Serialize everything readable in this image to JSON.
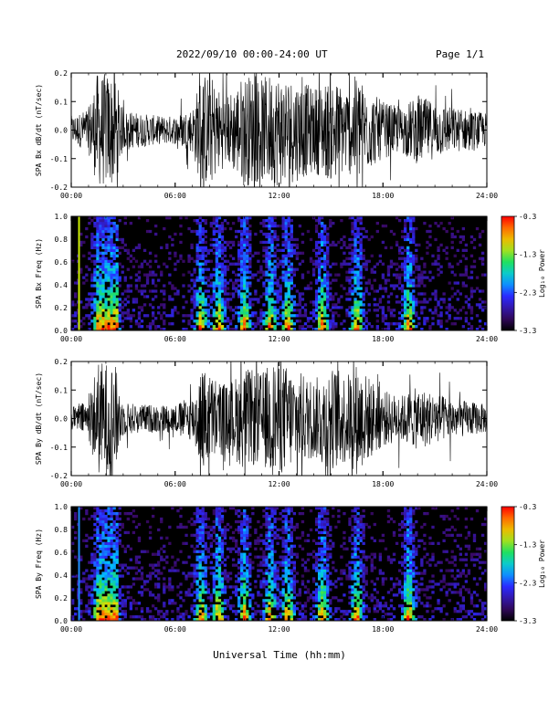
{
  "header": {
    "title": "2022/09/10  00:00-24:00 UT",
    "page": "Page 1/1"
  },
  "x_axis_title": "Universal Time (hh:mm)",
  "chart_data": [
    {
      "type": "line",
      "ylabel": "SPA Bx dB/dt (nT/sec)",
      "x_range_hours": [
        0,
        24
      ],
      "x_ticks": [
        "00:00",
        "06:00",
        "12:00",
        "18:00",
        "24:00"
      ],
      "ylim": [
        -0.2,
        0.2
      ],
      "y_ticks": [
        "-0.2",
        "-0.1",
        "0.0",
        "0.1",
        "0.2"
      ],
      "envelope": {
        "x_hours": [
          0,
          0.5,
          1.0,
          1.5,
          2.0,
          2.5,
          3.0,
          4.0,
          5.0,
          6.0,
          7.0,
          7.5,
          8.0,
          8.5,
          9.0,
          10.0,
          11.0,
          11.5,
          12.0,
          13.0,
          14.0,
          15.0,
          16.0,
          16.5,
          17.0,
          18.0,
          19.0,
          20.0,
          21.0,
          22.0,
          23.0,
          24.0
        ],
        "amplitude": [
          0.05,
          0.06,
          0.08,
          0.2,
          0.2,
          0.2,
          0.07,
          0.06,
          0.05,
          0.05,
          0.08,
          0.2,
          0.2,
          0.15,
          0.12,
          0.2,
          0.18,
          0.2,
          0.2,
          0.18,
          0.15,
          0.18,
          0.15,
          0.2,
          0.15,
          0.1,
          0.08,
          0.12,
          0.1,
          0.08,
          0.07,
          0.06
        ]
      }
    },
    {
      "type": "heatmap",
      "ylabel": "SPA Bx Freq (Hz)",
      "x_range_hours": [
        0,
        24
      ],
      "x_ticks": [
        "00:00",
        "06:00",
        "12:00",
        "18:00",
        "24:00"
      ],
      "ylim": [
        0,
        1.0
      ],
      "y_ticks": [
        "0.0",
        "0.2",
        "0.4",
        "0.6",
        "0.8",
        "1.0"
      ],
      "colorbar": {
        "label": "Log₁₀ Power",
        "ticks": [
          "-0.3",
          "-1.3",
          "-2.3",
          "-3.3"
        ],
        "range": [
          -3.3,
          -0.3
        ]
      },
      "marker_line": {
        "x_hours": 0.45,
        "color": "#ccee00"
      },
      "activity_peaks_hours": [
        1.6,
        2.0,
        2.4,
        7.5,
        8.5,
        10.0,
        11.5,
        12.5,
        14.5,
        16.5,
        19.5
      ]
    },
    {
      "type": "line",
      "ylabel": "SPA By dB/dt (nT/sec)",
      "x_range_hours": [
        0,
        24
      ],
      "x_ticks": [
        "00:00",
        "06:00",
        "12:00",
        "18:00",
        "24:00"
      ],
      "ylim": [
        -0.2,
        0.2
      ],
      "y_ticks": [
        "-0.2",
        "-0.1",
        "0.0",
        "0.1",
        "0.2"
      ],
      "envelope": {
        "x_hours": [
          0,
          0.5,
          1.0,
          1.5,
          2.0,
          2.5,
          3.0,
          4.0,
          5.0,
          6.0,
          7.0,
          7.5,
          8.0,
          8.5,
          9.0,
          10.0,
          11.0,
          11.5,
          12.0,
          13.0,
          14.0,
          15.0,
          16.0,
          16.5,
          17.0,
          18.0,
          19.0,
          20.0,
          21.0,
          22.0,
          23.0,
          24.0
        ],
        "amplitude": [
          0.04,
          0.05,
          0.07,
          0.2,
          0.2,
          0.2,
          0.06,
          0.05,
          0.05,
          0.05,
          0.08,
          0.18,
          0.16,
          0.14,
          0.12,
          0.18,
          0.16,
          0.2,
          0.2,
          0.17,
          0.14,
          0.18,
          0.16,
          0.2,
          0.16,
          0.1,
          0.08,
          0.11,
          0.09,
          0.07,
          0.06,
          0.05
        ]
      }
    },
    {
      "type": "heatmap",
      "ylabel": "SPA By Freq (Hz)",
      "x_range_hours": [
        0,
        24
      ],
      "x_ticks": [
        "00:00",
        "06:00",
        "12:00",
        "18:00",
        "24:00"
      ],
      "ylim": [
        0,
        1.0
      ],
      "y_ticks": [
        "0.0",
        "0.2",
        "0.4",
        "0.6",
        "0.8",
        "1.0"
      ],
      "colorbar": {
        "label": "Log₁₀ Power",
        "ticks": [
          "-0.3",
          "-1.3",
          "-2.3",
          "-3.3"
        ],
        "range": [
          -3.3,
          -0.3
        ]
      },
      "marker_line": {
        "x_hours": 0.45,
        "color": "#1e90ff"
      },
      "activity_peaks_hours": [
        1.6,
        2.0,
        2.4,
        7.5,
        8.5,
        10.0,
        11.5,
        12.5,
        14.5,
        16.5,
        19.5
      ]
    }
  ]
}
